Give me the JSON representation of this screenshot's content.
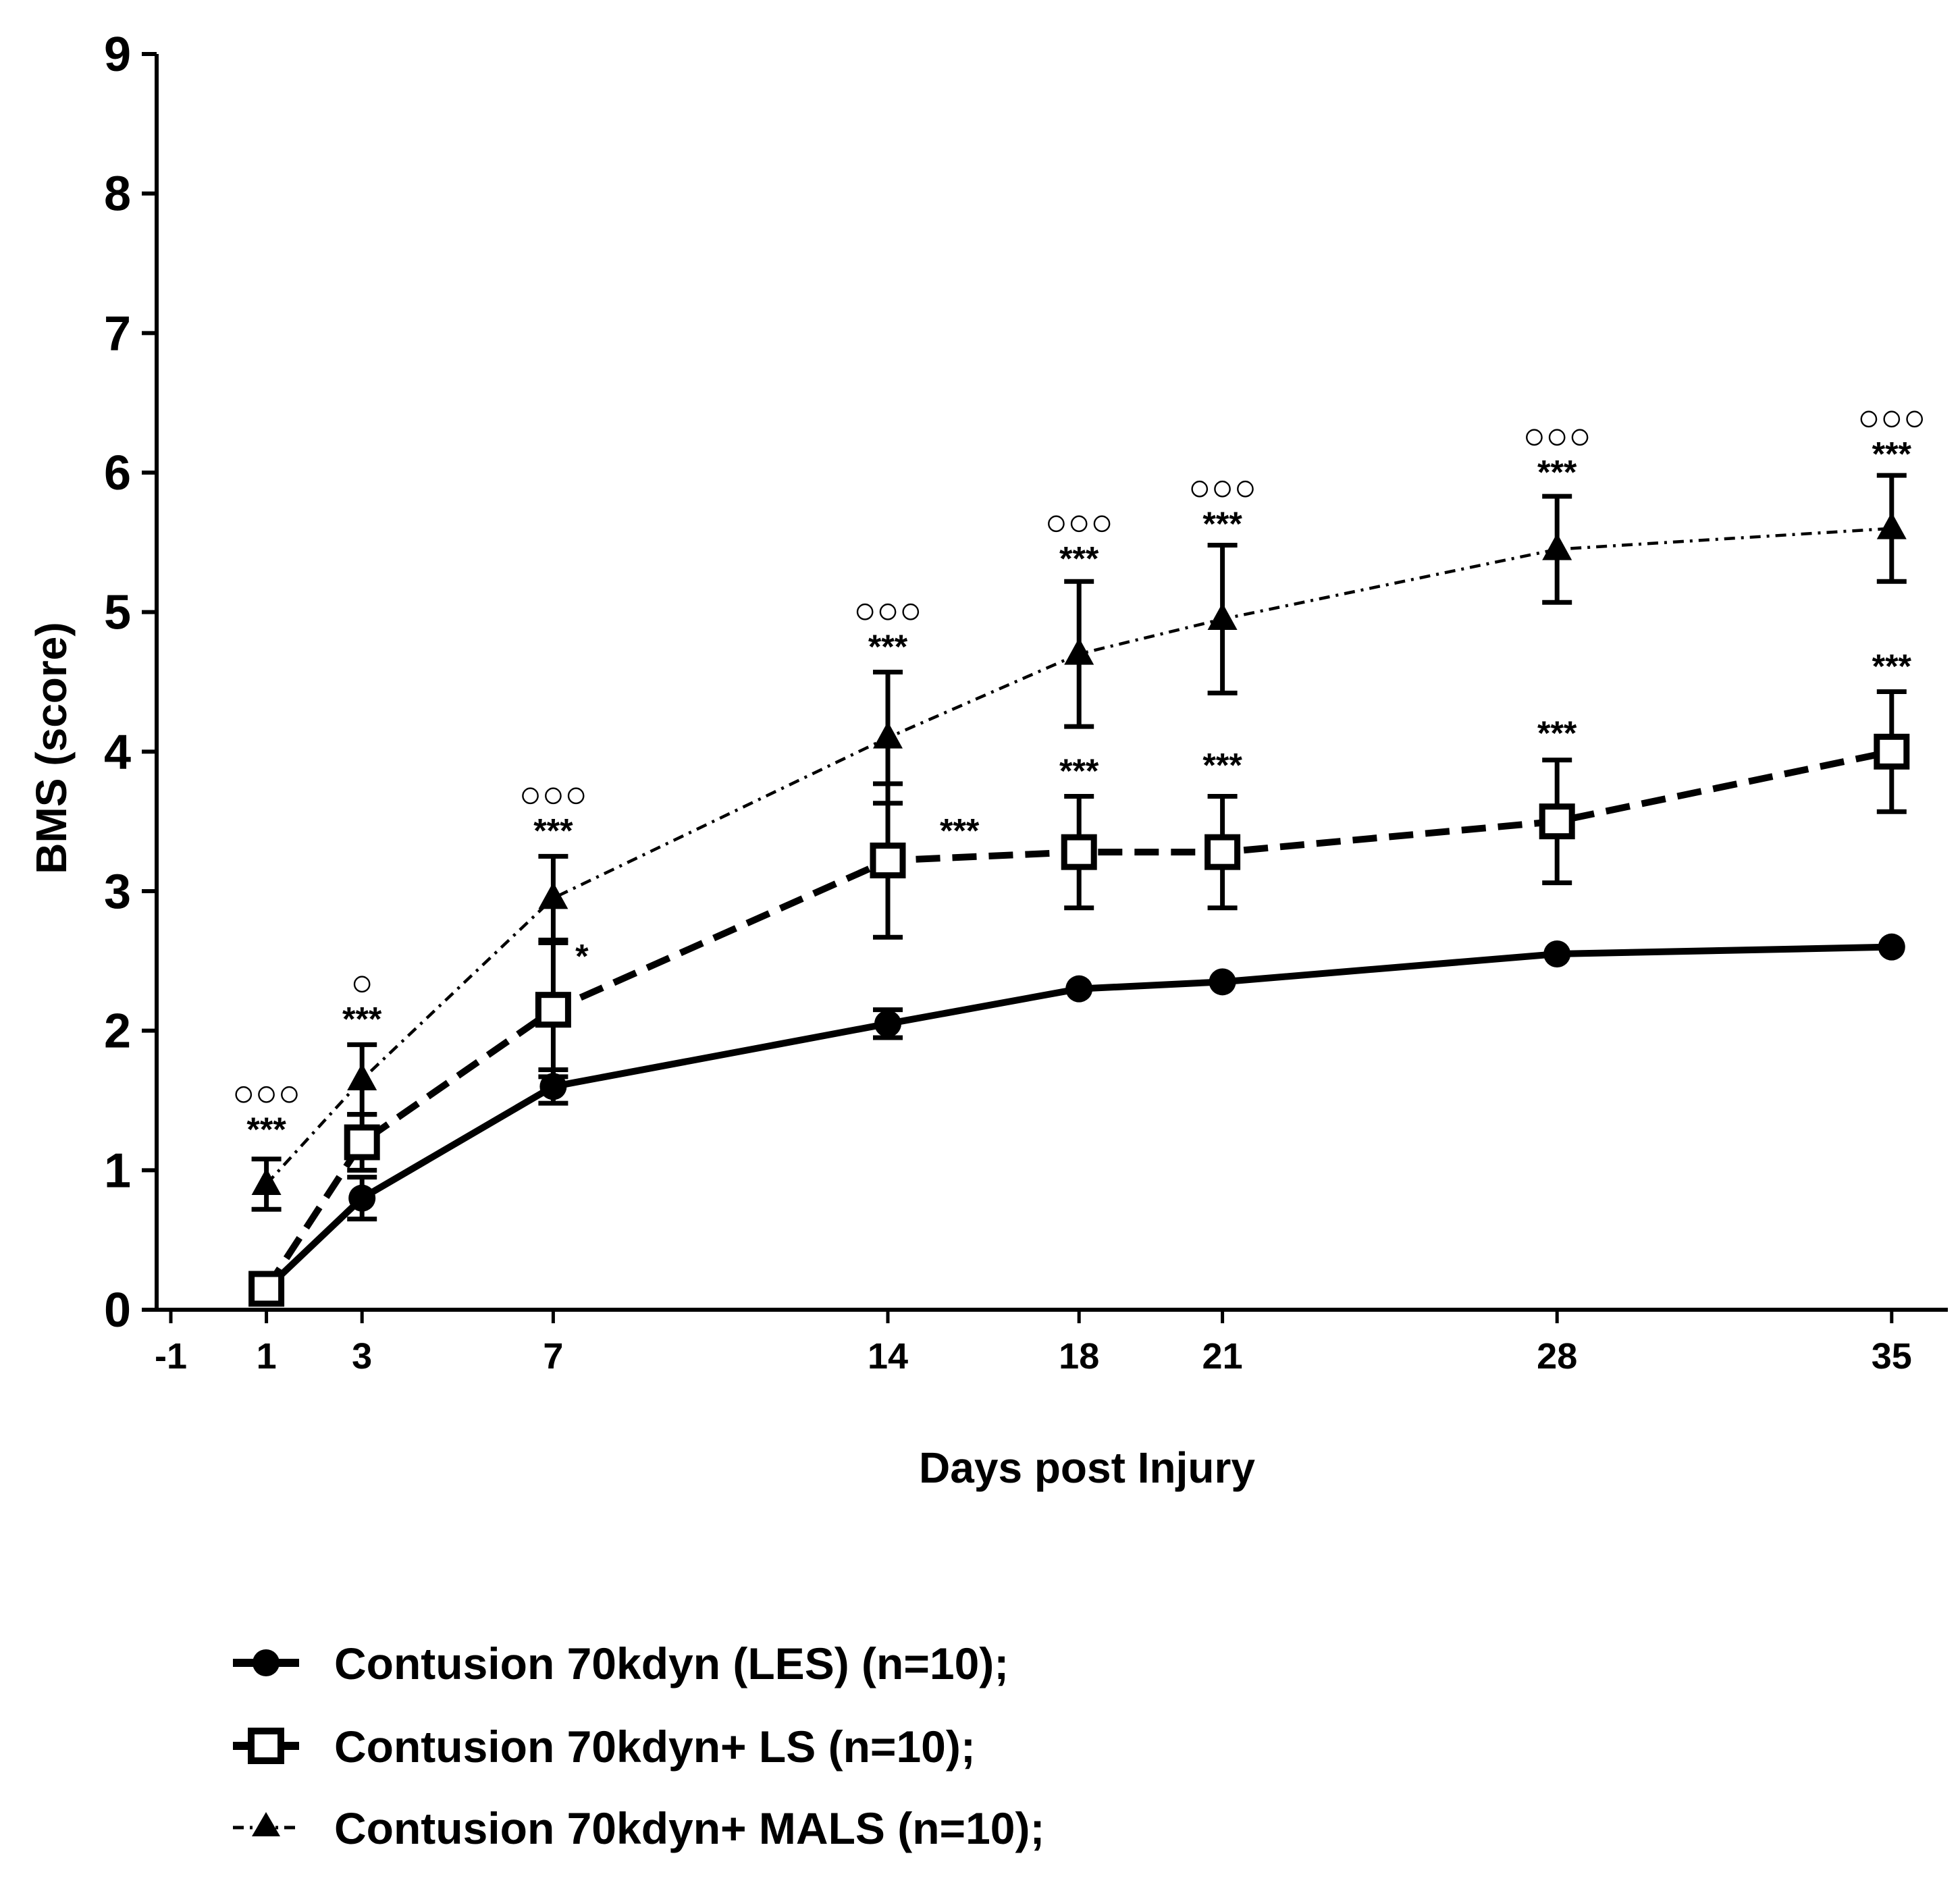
{
  "chart_data": {
    "type": "line",
    "title": "",
    "xlabel": "Days post Injury",
    "ylabel": "BMS (score)",
    "ylim": [
      0,
      9
    ],
    "xlim": [
      -1,
      37
    ],
    "yticks": [
      "0",
      "1",
      "2",
      "3",
      "4",
      "5",
      "6",
      "7",
      "8",
      "9"
    ],
    "xtick_values": [
      -1,
      1,
      3,
      7,
      14,
      18,
      21,
      28,
      35
    ],
    "xtick_labels": [
      "-1",
      "1",
      "3",
      "7",
      "14",
      "18",
      "21",
      "28",
      "35"
    ],
    "grid": false,
    "legend_position": "bottom-left",
    "series": [
      {
        "name": "Contusion 70kdyn (LES) (n=10);",
        "marker": "filled-circle",
        "line": "solid",
        "x": [
          1,
          3,
          7,
          14,
          18,
          21,
          28,
          35
        ],
        "y": [
          0.15,
          0.8,
          1.6,
          2.05,
          2.3,
          2.35,
          2.55,
          2.6
        ],
        "err": [
          0.1,
          0.15,
          0.12,
          0.1,
          0,
          0,
          0,
          0
        ]
      },
      {
        "name": "Contusion 70kdyn+ LS (n=10);",
        "marker": "open-square",
        "line": "dashed",
        "x": [
          1,
          3,
          7,
          14,
          18,
          21,
          28,
          35
        ],
        "y": [
          0.15,
          1.2,
          2.15,
          3.22,
          3.28,
          3.28,
          3.5,
          4.0
        ],
        "err": [
          0.1,
          0.2,
          0.48,
          0.55,
          0.4,
          0.4,
          0.44,
          0.43
        ]
      },
      {
        "name": "Contusion 70kdyn+ MALS (n=10);",
        "marker": "filled-triangle",
        "line": "dash-dot",
        "x": [
          1,
          3,
          7,
          14,
          18,
          21,
          28,
          35
        ],
        "y": [
          0.9,
          1.65,
          2.95,
          4.1,
          4.7,
          4.95,
          5.45,
          5.6
        ],
        "err": [
          0.18,
          0.25,
          0.3,
          0.47,
          0.52,
          0.53,
          0.38,
          0.38
        ]
      }
    ],
    "annotations": [
      {
        "x": 1,
        "y": 1.21,
        "circles": "○○○",
        "stars": "***"
      },
      {
        "x": 3,
        "y": 2.0,
        "circles": "○",
        "stars": "***"
      },
      {
        "x": 7,
        "y": 3.35,
        "circles": "○○○",
        "stars": "***"
      },
      {
        "x": 7.6,
        "y": 2.45,
        "stars": "*"
      },
      {
        "x": 14,
        "y": 4.67,
        "circles": "○○○",
        "stars": "***"
      },
      {
        "x": 15.5,
        "y": 3.35,
        "stars": "***"
      },
      {
        "x": 18,
        "y": 5.3,
        "circles": "○○○",
        "stars": "***"
      },
      {
        "x": 18,
        "y": 3.78,
        "stars": "***"
      },
      {
        "x": 21,
        "y": 5.55,
        "circles": "○○○",
        "stars": "***"
      },
      {
        "x": 21,
        "y": 3.82,
        "stars": "***"
      },
      {
        "x": 28,
        "y": 5.92,
        "circles": "○○○",
        "stars": "***"
      },
      {
        "x": 28,
        "y": 4.05,
        "stars": "***"
      },
      {
        "x": 35,
        "y": 6.05,
        "circles": "○○○",
        "stars": "***"
      },
      {
        "x": 35,
        "y": 4.53,
        "stars": "***"
      }
    ]
  }
}
